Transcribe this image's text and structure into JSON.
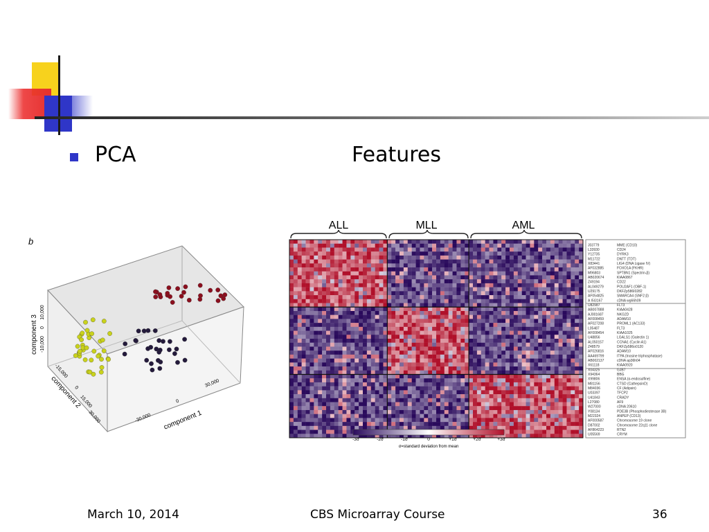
{
  "slide": {
    "bullet_left": "PCA",
    "bullet_right": "Features"
  },
  "pca_plot": {
    "panel_letter": "b",
    "axis_component3": "component 3",
    "axis_component2": "component 2",
    "axis_component1": "component 1",
    "ticks_c3": [
      "10,000",
      "0",
      "-10,000"
    ],
    "ticks_c2": [
      "-15,000",
      "0",
      "15,000",
      "30,000"
    ],
    "ticks_c1": [
      "-30,000",
      "0",
      "30,000"
    ],
    "groups": [
      {
        "color": "#c9d21c"
      },
      {
        "color": "#241a3c"
      },
      {
        "color": "#8b0f1e"
      }
    ]
  },
  "heatmap": {
    "group_labels": [
      "ALL",
      "MLL",
      "AML"
    ],
    "accession_ids": [
      "J03779",
      "L33930",
      "Y12735",
      "M11722",
      "X83441",
      "AF032885",
      "M96803",
      "AB020674",
      "Z49194",
      "AL049279",
      "U29175",
      "AF054825",
      "A I5I3167",
      "U82987",
      "AB007888",
      "AJ001687",
      "AF008459",
      "AF027208",
      "L05487",
      "AF008454",
      "U48856",
      "AL050157",
      "Z48579",
      "AF026816",
      "AA469799",
      "AB002137",
      "X61118",
      "X04325",
      "X94364",
      "X99806",
      "M81156",
      "M84036",
      "U03397",
      "U41843",
      "L27080",
      "W27000",
      "Y08134",
      "M22324",
      "AF000587",
      "D87002",
      "AF864223",
      "U05569"
    ],
    "gene_names": [
      "MME (CD10)",
      "CD24",
      "DYRK3",
      "DNTT (TDT)",
      "LIG4 (DNA Ligase IV)",
      "FOXO1A (FKHR)",
      "SPTBN1 (Spectrin-β)",
      "KIAA0867",
      "CD22",
      "POU2AF1 (OBF-1)",
      "DKFZp586I0282",
      "SMARCA4 (SNF2 β)",
      "cDNA wg66h09",
      "FLT3",
      "KIAA0428",
      "NKG2D",
      "ADAM10",
      "PROML1 (AC133)",
      "FLT3",
      "KIAA1025",
      "LGALS1 (Galectin 1)",
      "CCNA1 (Cyclin A1)",
      "DKFZp586o0120",
      "ADAM10",
      "ITPA (Inosine triphosphatase)",
      "cDNA ap36h04",
      "KIAA0920",
      "GJB7",
      "BBG",
      "ENSA (α-endosulfine)",
      "CTSD (CathepsinD)",
      "CF (Adipsin)",
      "TFCP2",
      "CRADY",
      "AF9",
      "cDNA 20610",
      "PDE3B (Phosphodiesterase 3B)",
      "ANPEP (CD13)",
      "Chromosome 19 clone",
      "Chromosome 22q11 clone",
      "RTN2",
      "CRYM"
    ],
    "scale_ticks": [
      "-3σ",
      "-2σ",
      "-1σ",
      "0",
      "+1σ",
      "+2σ",
      "+3σ"
    ],
    "scale_caption": "σ=standard deviation from mean",
    "scale_colors": {
      "low": "#2a0a5c",
      "mid": "#ffffff",
      "high": "#b0102a"
    }
  },
  "footer": {
    "date": "March 10, 2014",
    "course": "CBS Microarray Course",
    "page": "36"
  }
}
